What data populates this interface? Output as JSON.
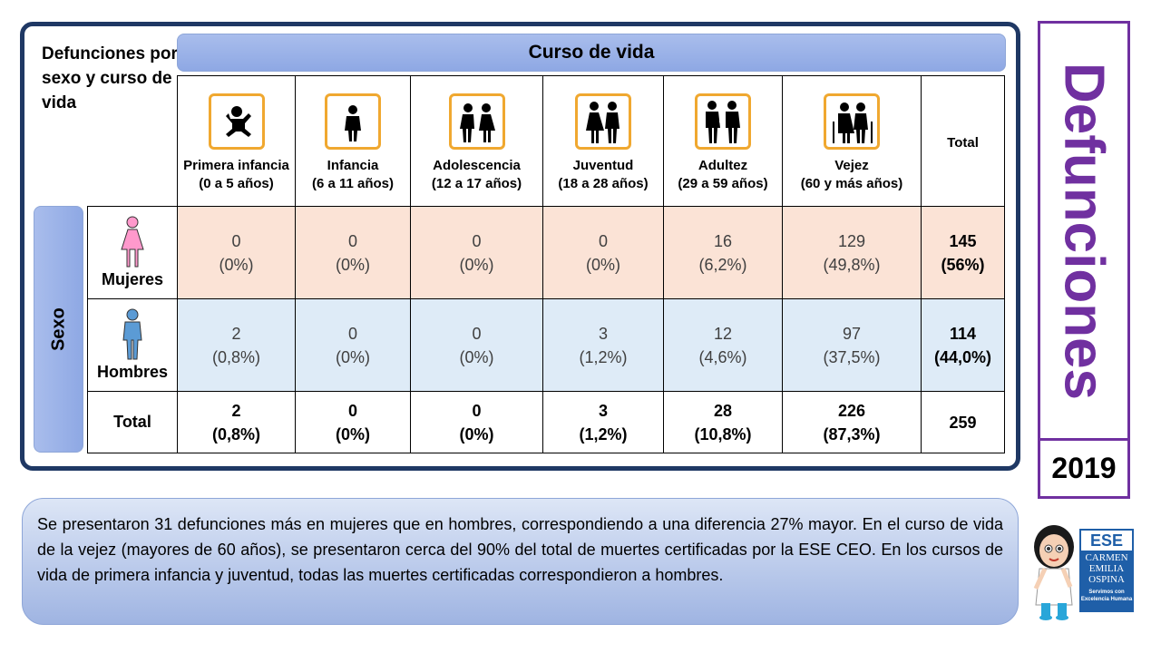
{
  "corner_title": "Defunciones por sexo y curso de vida",
  "curso_banner": "Curso de vida",
  "sexo_banner": "Sexo",
  "columns": [
    {
      "name": "Primera infancia",
      "range": "(0 a 5 años)",
      "icon": "baby-icon"
    },
    {
      "name": "Infancia",
      "range": "(6 a 11 años)",
      "icon": "child-icon"
    },
    {
      "name": "Adolescencia",
      "range": "(12 a 17 años)",
      "icon": "teen-couple-icon"
    },
    {
      "name": "Juventud",
      "range": "(18 a 28 años)",
      "icon": "young-couple-icon"
    },
    {
      "name": "Adultez",
      "range": "(29 a 59 años)",
      "icon": "adult-family-icon"
    },
    {
      "name": "Vejez",
      "range": "(60 y más años)",
      "icon": "elderly-couple-icon"
    }
  ],
  "total_label": "Total",
  "rows": {
    "mujeres": {
      "label": "Mujeres",
      "icon": "woman-icon",
      "values": [
        {
          "n": "0",
          "p": "(0%)"
        },
        {
          "n": "0",
          "p": "(0%)"
        },
        {
          "n": "0",
          "p": "(0%)"
        },
        {
          "n": "0",
          "p": "(0%)"
        },
        {
          "n": "16",
          "p": "(6,2%)"
        },
        {
          "n": "129",
          "p": "(49,8%)"
        }
      ],
      "total": {
        "n": "145",
        "p": "(56%)"
      }
    },
    "hombres": {
      "label": "Hombres",
      "icon": "man-icon",
      "values": [
        {
          "n": "2",
          "p": "(0,8%)"
        },
        {
          "n": "0",
          "p": "(0%)"
        },
        {
          "n": "0",
          "p": "(0%)"
        },
        {
          "n": "3",
          "p": "(1,2%)"
        },
        {
          "n": "12",
          "p": "(4,6%)"
        },
        {
          "n": "97",
          "p": "(37,5%)"
        }
      ],
      "total": {
        "n": "114",
        "p": "(44,0%)"
      }
    },
    "total": {
      "label": "Total",
      "values": [
        {
          "n": "2",
          "p": "(0,8%)"
        },
        {
          "n": "0",
          "p": "(0%)"
        },
        {
          "n": "0",
          "p": "(0%)"
        },
        {
          "n": "3",
          "p": "(1,2%)"
        },
        {
          "n": "28",
          "p": "(10,8%)"
        },
        {
          "n": "226",
          "p": "(87,3%)"
        }
      ],
      "grand_total": "259"
    }
  },
  "side_title": "Defunciones",
  "year": "2019",
  "note": "Se presentaron 31 defunciones más en mujeres que en hombres, correspondiendo a una diferencia 27% mayor. En el curso de vida de la vejez (mayores de 60 años), se presentaron cerca del 90% del total de muertes certificadas por la ESE CEO. En los cursos de vida de primera infancia y juventud, todas las muertes certificadas correspondieron a hombres.",
  "logo": {
    "ese": "ESE",
    "line1": "CARMEN",
    "line2": "EMILIA",
    "line3": "OSPINA",
    "tagline1": "Servimos con",
    "tagline2": "Excelencia Humana"
  },
  "colors": {
    "frame": "#1f3864",
    "banner": "#8ea8e4",
    "women_row": "#fbe3d6",
    "men_row": "#deebf7",
    "title_purple": "#7030a0",
    "icon_border": "#f0a830",
    "woman_icon": "#ff99cc",
    "man_icon": "#5b9bd5"
  }
}
